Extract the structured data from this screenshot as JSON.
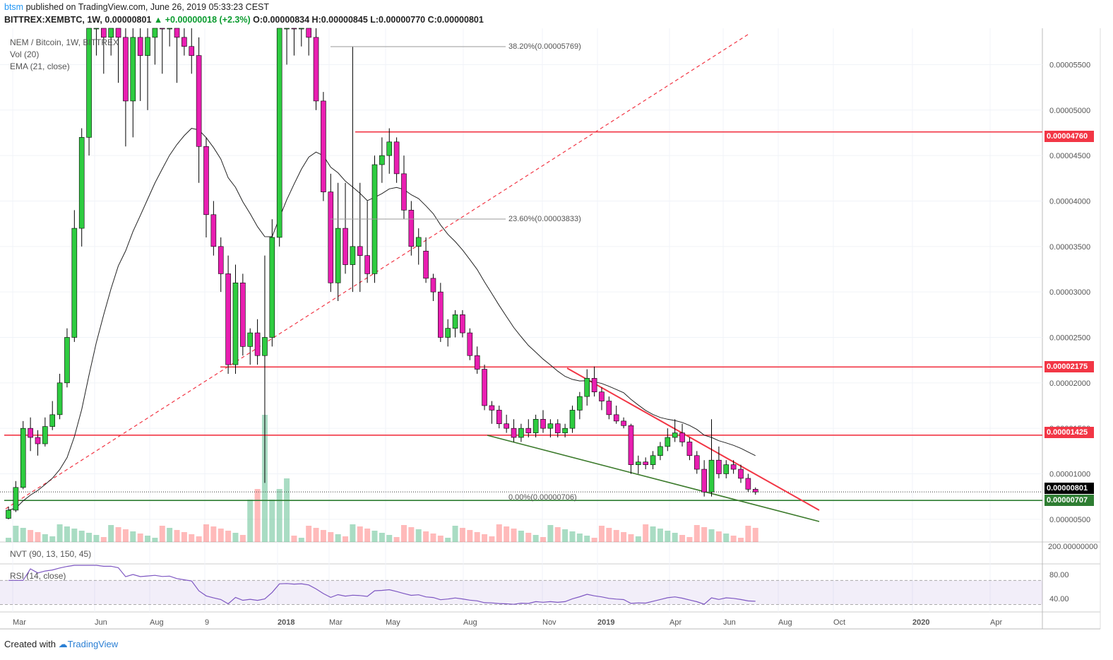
{
  "header": {
    "line1_user": "btsm",
    "line1_rest": " published on TradingView.com, June 26, 2019 05:33:23 CEST",
    "symbol": "BITTREX:XEMBTC, 1W, 0.00000801",
    "change": "▲ +0.00000018 (+2.3%)",
    "ohlc": "O:0.00000834 H:0.00000845 L:0.00000770 C:0.00000801"
  },
  "legends": {
    "pair": "NEM / Bitcoin, 1W, BITTREX",
    "vol": "Vol (20)",
    "ema": "EMA (21, close)",
    "nvt": "NVT (90, 13, 150, 45)",
    "rsi": "RSI (14, close)"
  },
  "price_axis": {
    "ticks": [
      "0.00005500",
      "0.00005000",
      "0.00004500",
      "0.00004000",
      "0.00003500",
      "0.00003000",
      "0.00002500",
      "0.00002000",
      "0.00001500",
      "0.00001000",
      "0.00000500"
    ],
    "nvt_tick": "200.00000000",
    "rsi_ticks": [
      "80.00",
      "40.00"
    ],
    "tags": [
      {
        "label": "0.00004760",
        "color": "#f23645"
      },
      {
        "label": "0.00002175",
        "color": "#f23645"
      },
      {
        "label": "0.00001425",
        "color": "#f23645"
      },
      {
        "label": "0.00000801",
        "color": "#000000"
      },
      {
        "label": "0.00000707",
        "color": "#2e7d32"
      }
    ]
  },
  "fib_labels": {
    "f382": "38.20%(0.00005769)",
    "f236": "23.60%(0.00003833)",
    "f0": "0.00%(0.00000706)"
  },
  "time_axis": [
    "Mar",
    "Jun",
    "Aug",
    "9",
    "2018",
    "Mar",
    "May",
    "Aug",
    "Nov",
    "2019",
    "Apr",
    "Jun",
    "Aug",
    "Oct",
    "2020",
    "Apr"
  ],
  "footer": {
    "created": "Created with",
    "brand": "TradingView"
  },
  "colors": {
    "up": "#2ecc40",
    "down": "#e91eb1",
    "hline": "#f23645",
    "support": "#2e7d32",
    "rsi": "#7e57c2"
  },
  "chart_data": {
    "type": "candlestick",
    "title": "NEM / Bitcoin, 1W, BITTREX",
    "ylim": [
      2.5e-06,
      5.9e-05
    ],
    "y_unit": "BTC",
    "horizontal_levels": [
      4.76e-05,
      2.175e-05,
      1.425e-05,
      7.07e-06
    ],
    "last_close": 8.01e-06,
    "ohlc": [
      [
        5.1e-06,
        6.4e-06,
        5e-06,
        6e-06
      ],
      [
        6e-06,
        9.2e-06,
        5.8e-06,
        8.5e-06
      ],
      [
        8.5e-06,
        1.58e-05,
        8.3e-06,
        1.5e-05
      ],
      [
        1.5e-05,
        1.62e-05,
        1.25e-05,
        1.4e-05
      ],
      [
        1.4e-05,
        1.48e-05,
        1.2e-05,
        1.33e-05
      ],
      [
        1.33e-05,
        1.62e-05,
        1.3e-05,
        1.52e-05
      ],
      [
        1.52e-05,
        1.8e-05,
        1.48e-05,
        1.65e-05
      ],
      [
        1.65e-05,
        2.1e-05,
        1.6e-05,
        2e-05
      ],
      [
        2e-05,
        2.6e-05,
        1.95e-05,
        2.5e-05
      ],
      [
        2.5e-05,
        3.9e-05,
        2.45e-05,
        3.7e-05
      ],
      [
        3.7e-05,
        4.8e-05,
        3.5e-05,
        4.7e-05
      ],
      [
        4.7e-05,
        6e-05,
        4.5e-05,
        5.9e-05
      ],
      [
        5.9e-05,
        6.2e-05,
        5.6e-05,
        6e-05
      ],
      [
        6e-05,
        6.2e-05,
        5.4e-05,
        5.8e-05
      ],
      [
        5.8e-05,
        6e-05,
        5.6e-05,
        5.9e-05
      ],
      [
        5.9e-05,
        6.1e-05,
        5.3e-05,
        5.8e-05
      ],
      [
        5.8e-05,
        6e-05,
        4.6e-05,
        5.1e-05
      ],
      [
        5.1e-05,
        6e-05,
        4.7e-05,
        5.8e-05
      ],
      [
        5.8e-05,
        6e-05,
        5.1e-05,
        5.6e-05
      ],
      [
        5.6e-05,
        5.9e-05,
        5e-05,
        5.8e-05
      ],
      [
        5.8e-05,
        6.1e-05,
        5.5e-05,
        6e-05
      ],
      [
        6e-05,
        6.2e-05,
        5.4e-05,
        5.9e-05
      ],
      [
        5.9e-05,
        6.1e-05,
        5.7e-05,
        6e-05
      ],
      [
        6e-05,
        6.1e-05,
        5.3e-05,
        5.8e-05
      ],
      [
        5.8e-05,
        6e-05,
        5.6e-05,
        5.7e-05
      ],
      [
        5.7e-05,
        5.9e-05,
        5.4e-05,
        5.6e-05
      ],
      [
        5.6e-05,
        5.8e-05,
        4.2e-05,
        4.6e-05
      ],
      [
        4.6e-05,
        4.7e-05,
        3.6e-05,
        3.85e-05
      ],
      [
        3.85e-05,
        4e-05,
        3.4e-05,
        3.5e-05
      ],
      [
        3.5e-05,
        3.6e-05,
        3e-05,
        3.2e-05
      ],
      [
        3.2e-05,
        3.4e-05,
        2.1e-05,
        2.2e-05
      ],
      [
        2.2e-05,
        3.3e-05,
        2.1e-05,
        3.1e-05
      ],
      [
        3.1e-05,
        3.2e-05,
        2.3e-05,
        2.4e-05
      ],
      [
        2.4e-05,
        2.6e-05,
        2.2e-05,
        2.55e-05
      ],
      [
        2.55e-05,
        2.7e-05,
        2.2e-05,
        2.3e-05
      ],
      [
        2.3e-05,
        3.4e-05,
        9e-06,
        2.5e-05
      ],
      [
        2.5e-05,
        3.8e-05,
        2.4e-05,
        3.6e-05
      ],
      [
        3.6e-05,
        6e-05,
        3.5e-05,
        5.9e-05
      ],
      [
        5.9e-05,
        6.2e-05,
        5.5e-05,
        6e-05
      ],
      [
        6e-05,
        6.2e-05,
        5.6e-05,
        5.9e-05
      ],
      [
        5.9e-05,
        6.1e-05,
        5.7e-05,
        6e-05
      ],
      [
        6e-05,
        6.1e-05,
        5.6e-05,
        5.8e-05
      ],
      [
        5.8e-05,
        6e-05,
        5e-05,
        5.1e-05
      ],
      [
        5.1e-05,
        5.2e-05,
        4e-05,
        4.1e-05
      ],
      [
        4.1e-05,
        4.3e-05,
        3e-05,
        3.1e-05
      ],
      [
        3.1e-05,
        4.2e-05,
        2.9e-05,
        3.7e-05
      ],
      [
        3.7e-05,
        4.2e-05,
        3.2e-05,
        3.3e-05
      ],
      [
        3.3e-05,
        5.7e-05,
        3e-05,
        3.5e-05
      ],
      [
        3.5e-05,
        4.2e-05,
        3e-05,
        3.4e-05
      ],
      [
        3.4e-05,
        4e-05,
        3.1e-05,
        3.2e-05
      ],
      [
        3.2e-05,
        4.5e-05,
        3.1e-05,
        4.4e-05
      ],
      [
        4.4e-05,
        4.7e-05,
        4.2e-05,
        4.5e-05
      ],
      [
        4.5e-05,
        4.8e-05,
        4.3e-05,
        4.65e-05
      ],
      [
        4.65e-05,
        4.7e-05,
        4.2e-05,
        4.3e-05
      ],
      [
        4.3e-05,
        4.5e-05,
        3.8e-05,
        3.9e-05
      ],
      [
        3.9e-05,
        4e-05,
        3.4e-05,
        3.5e-05
      ],
      [
        3.5e-05,
        3.7e-05,
        3.3e-05,
        3.6e-05
      ],
      [
        3.45e-05,
        3.6e-05,
        3.1e-05,
        3.15e-05
      ],
      [
        3.15e-05,
        3.2e-05,
        2.9e-05,
        3e-05
      ],
      [
        3e-05,
        3.1e-05,
        2.45e-05,
        2.5e-05
      ],
      [
        2.5e-05,
        2.7e-05,
        2.4e-05,
        2.6e-05
      ],
      [
        2.6e-05,
        2.8e-05,
        2.5e-05,
        2.75e-05
      ],
      [
        2.75e-05,
        2.8e-05,
        2.5e-05,
        2.55e-05
      ],
      [
        2.55e-05,
        2.6e-05,
        2.25e-05,
        2.3e-05
      ],
      [
        2.3e-05,
        2.4e-05,
        2.1e-05,
        2.15e-05
      ],
      [
        2.15e-05,
        2.2e-05,
        1.7e-05,
        1.75e-05
      ],
      [
        1.75e-05,
        1.8e-05,
        1.55e-05,
        1.7e-05
      ],
      [
        1.7e-05,
        1.75e-05,
        1.5e-05,
        1.55e-05
      ],
      [
        1.55e-05,
        1.65e-05,
        1.45e-05,
        1.5e-05
      ],
      [
        1.5e-05,
        1.6e-05,
        1.35e-05,
        1.4e-05
      ],
      [
        1.4e-05,
        1.55e-05,
        1.35e-05,
        1.5e-05
      ],
      [
        1.5e-05,
        1.6e-05,
        1.4e-05,
        1.45e-05
      ],
      [
        1.45e-05,
        1.65e-05,
        1.4e-05,
        1.6e-05
      ],
      [
        1.6e-05,
        1.7e-05,
        1.45e-05,
        1.5e-05
      ],
      [
        1.5e-05,
        1.6e-05,
        1.4e-05,
        1.55e-05
      ],
      [
        1.55e-05,
        1.6e-05,
        1.4e-05,
        1.45e-05
      ],
      [
        1.45e-05,
        1.55e-05,
        1.4e-05,
        1.5e-05
      ],
      [
        1.5e-05,
        1.75e-05,
        1.45e-05,
        1.7e-05
      ],
      [
        1.7e-05,
        1.9e-05,
        1.6e-05,
        1.85e-05
      ],
      [
        1.85e-05,
        2.15e-05,
        1.75e-05,
        2.05e-05
      ],
      [
        2.05e-05,
        2.18e-05,
        1.85e-05,
        1.9e-05
      ],
      [
        1.9e-05,
        1.95e-05,
        1.7e-05,
        1.8e-05
      ],
      [
        1.8e-05,
        1.85e-05,
        1.6e-05,
        1.65e-05
      ],
      [
        1.65e-05,
        1.75e-05,
        1.55e-05,
        1.58e-05
      ],
      [
        1.58e-05,
        1.62e-05,
        1.5e-05,
        1.53e-05
      ],
      [
        1.53e-05,
        1.55e-05,
        1e-05,
        1.1e-05
      ],
      [
        1.1e-05,
        1.2e-05,
        1e-05,
        1.13e-05
      ],
      [
        1.13e-05,
        1.18e-05,
        1.05e-05,
        1.1e-05
      ],
      [
        1.1e-05,
        1.25e-05,
        1.05e-05,
        1.2e-05
      ],
      [
        1.2e-05,
        1.35e-05,
        1.15e-05,
        1.3e-05
      ],
      [
        1.3e-05,
        1.5e-05,
        1.25e-05,
        1.4e-05
      ],
      [
        1.4e-05,
        1.6e-05,
        1.35e-05,
        1.45e-05
      ],
      [
        1.45e-05,
        1.55e-05,
        1.3e-05,
        1.35e-05
      ],
      [
        1.35e-05,
        1.4e-05,
        1.15e-05,
        1.2e-05
      ],
      [
        1.2e-05,
        1.25e-05,
        1e-05,
        1.05e-05
      ],
      [
        1.05e-05,
        1.15e-05,
        7.5e-06,
        8e-06
      ],
      [
        8e-06,
        1.6e-05,
        7.5e-06,
        1.15e-05
      ],
      [
        1.15e-05,
        1.3e-05,
        9.5e-06,
        1e-05
      ],
      [
        1e-05,
        1.15e-05,
        9.5e-06,
        1.1e-05
      ],
      [
        1.1e-05,
        1.15e-05,
        1e-05,
        1.05e-05
      ],
      [
        1.05e-05,
        1.1e-05,
        9e-06,
        9.5e-06
      ],
      [
        9.5e-06,
        1e-05,
        8e-06,
        8.3e-06
      ],
      [
        8.3e-06,
        8.5e-06,
        7.7e-06,
        8e-06
      ]
    ]
  }
}
